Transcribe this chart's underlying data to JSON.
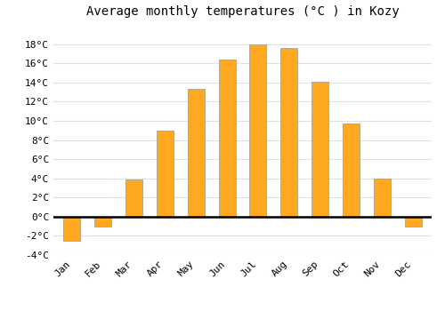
{
  "title": "Average monthly temperatures (°C ) in Kozy",
  "months": [
    "Jan",
    "Feb",
    "Mar",
    "Apr",
    "May",
    "Jun",
    "Jul",
    "Aug",
    "Sep",
    "Oct",
    "Nov",
    "Dec"
  ],
  "values": [
    -2.5,
    -1.0,
    3.9,
    9.0,
    13.3,
    16.4,
    18.0,
    17.6,
    14.1,
    9.7,
    4.0,
    -1.0
  ],
  "bar_color": "#FFA820",
  "bar_edge_color": "#999999",
  "background_color": "#ffffff",
  "grid_color": "#e0e0e0",
  "ylim": [
    -4,
    20
  ],
  "yticks": [
    -4,
    -2,
    0,
    2,
    4,
    6,
    8,
    10,
    12,
    14,
    16,
    18
  ],
  "title_fontsize": 10,
  "tick_fontsize": 8,
  "bar_width": 0.55
}
